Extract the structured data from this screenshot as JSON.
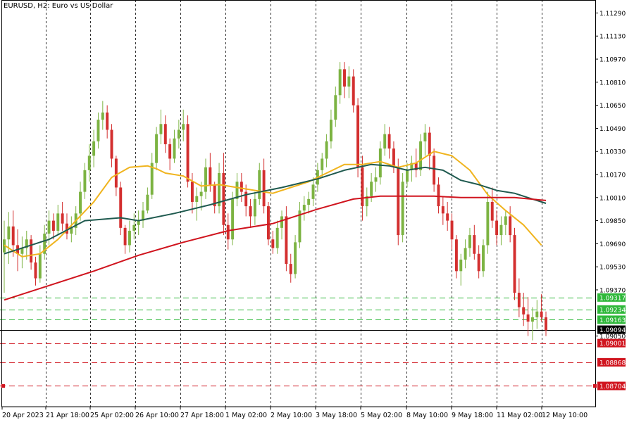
{
  "chart_data": {
    "type": "candlestick",
    "title": "EURUSD, H2:  Euro vs US Dollar",
    "symbol": "EURUSD",
    "timeframe": "H2",
    "description": "Euro vs US Dollar",
    "ylim": [
      1.0856,
      1.1138
    ],
    "y_ticks": [
      "1.11290",
      "1.11130",
      "1.10970",
      "1.10810",
      "1.10650",
      "1.10490",
      "1.10330",
      "1.10170",
      "1.10010",
      "1.09850",
      "1.09690",
      "1.09530",
      "1.09370",
      "1.09050"
    ],
    "x_labels": [
      "20 Apr 2023",
      "21 Apr 18:00",
      "25 Apr 02:00",
      "26 Apr 10:00",
      "27 Apr 18:00",
      "1 May 02:00",
      "2 May 10:00",
      "3 May 18:00",
      "5 May 02:00",
      "8 May 10:00",
      "9 May 18:00",
      "11 May 02:00",
      "12 May 10:00"
    ],
    "grid": "vertical-dashed",
    "colors": {
      "bull": "#7cb342",
      "bear": "#d32f2f",
      "ma_fast": "#f0b41e",
      "ma_mid": "#1f5a4f",
      "ma_slow": "#d0141e",
      "support": "#2fb83a",
      "resistance": "#d0141e",
      "current": "#000000"
    },
    "current_price": "1.09094",
    "levels": [
      {
        "price": 1.09317,
        "label": "1.09317",
        "kind": "support"
      },
      {
        "price": 1.09234,
        "label": "1.09234",
        "kind": "support"
      },
      {
        "price": 1.09163,
        "label": "1.09163",
        "kind": "support"
      },
      {
        "price": 1.09001,
        "label": "1.09001",
        "kind": "resistance"
      },
      {
        "price": 1.08868,
        "label": "1.08868",
        "kind": "resistance"
      },
      {
        "price": 1.08704,
        "label": "1.08704",
        "kind": "resistance"
      }
    ],
    "candles": [
      [
        1.0963,
        1.0985,
        1.0935,
        1.0972
      ],
      [
        1.0972,
        1.0991,
        1.0955,
        1.0981
      ],
      [
        1.0981,
        1.0992,
        1.096,
        1.0968
      ],
      [
        1.0968,
        1.0979,
        1.095,
        1.0962
      ],
      [
        1.0962,
        1.0974,
        1.0952,
        1.0966
      ],
      [
        1.0966,
        1.0978,
        1.0958,
        1.0972
      ],
      [
        1.0972,
        1.0975,
        1.0951,
        1.0956
      ],
      [
        1.0956,
        1.096,
        1.094,
        1.0945
      ],
      [
        1.0945,
        1.0968,
        1.0942,
        1.0962
      ],
      [
        1.0962,
        1.0982,
        1.0958,
        1.0976
      ],
      [
        1.0976,
        1.0992,
        1.0968,
        1.0985
      ],
      [
        1.0985,
        1.099,
        1.0972,
        1.0978
      ],
      [
        1.0978,
        1.0996,
        1.0975,
        1.099
      ],
      [
        1.099,
        1.0998,
        1.0978,
        1.0983
      ],
      [
        1.0983,
        1.099,
        1.0972,
        1.0976
      ],
      [
        1.0976,
        1.0988,
        1.097,
        1.098
      ],
      [
        1.098,
        1.0995,
        1.0975,
        1.099
      ],
      [
        1.099,
        1.1012,
        1.0985,
        1.1005
      ],
      [
        1.1005,
        1.1025,
        1.1,
        1.102
      ],
      [
        1.102,
        1.1038,
        1.1012,
        1.103
      ],
      [
        1.103,
        1.1048,
        1.1022,
        1.104
      ],
      [
        1.104,
        1.106,
        1.1035,
        1.1055
      ],
      [
        1.1055,
        1.1068,
        1.1048,
        1.106
      ],
      [
        1.106,
        1.1065,
        1.1042,
        1.1048
      ],
      [
        1.1048,
        1.1052,
        1.1022,
        1.1028
      ],
      [
        1.1028,
        1.103,
        1.1002,
        1.1008
      ],
      [
        1.1008,
        1.1012,
        1.0975,
        1.098
      ],
      [
        1.098,
        1.0982,
        1.0962,
        1.0968
      ],
      [
        1.0968,
        1.0985,
        1.0963,
        1.0978
      ],
      [
        1.0978,
        1.099,
        1.0972,
        1.0982
      ],
      [
        1.0982,
        1.0992,
        1.0975,
        1.0985
      ],
      [
        1.0985,
        1.0998,
        1.098,
        1.0992
      ],
      [
        1.0992,
        1.1008,
        1.099,
        1.1003
      ],
      [
        1.1003,
        1.1032,
        1.1,
        1.1025
      ],
      [
        1.1025,
        1.105,
        1.102,
        1.1045
      ],
      [
        1.1045,
        1.1062,
        1.1038,
        1.1052
      ],
      [
        1.1052,
        1.1058,
        1.1032,
        1.1038
      ],
      [
        1.1038,
        1.1042,
        1.102,
        1.1028
      ],
      [
        1.1028,
        1.1048,
        1.1025,
        1.1042
      ],
      [
        1.1042,
        1.1055,
        1.1035,
        1.1048
      ],
      [
        1.1048,
        1.1062,
        1.104,
        1.1052
      ],
      [
        1.1052,
        1.1058,
        1.1008,
        1.1012
      ],
      [
        1.1012,
        1.1018,
        1.099,
        1.0998
      ],
      [
        1.0998,
        1.1008,
        1.0985,
        1.1002
      ],
      [
        1.1002,
        1.1012,
        1.0992,
        1.1005
      ],
      [
        1.1005,
        1.1028,
        1.1,
        1.1022
      ],
      [
        1.1022,
        1.1032,
        1.1005,
        1.101
      ],
      [
        1.101,
        1.1012,
        1.099,
        1.0995
      ],
      [
        1.0995,
        1.1025,
        1.099,
        1.1018
      ],
      [
        1.1018,
        1.1032,
        1.0975,
        1.0982
      ],
      [
        1.0982,
        1.099,
        1.0965,
        1.0972
      ],
      [
        1.0972,
        1.1005,
        1.0968,
        1.1
      ],
      [
        1.1,
        1.1018,
        1.0995,
        1.1012
      ],
      [
        1.1012,
        1.1018,
        1.0998,
        1.1005
      ],
      [
        1.1005,
        1.101,
        1.0988,
        1.0995
      ],
      [
        1.0995,
        1.1,
        1.098,
        1.0988
      ],
      [
        1.0988,
        1.1005,
        1.0982,
        1.1
      ],
      [
        1.1,
        1.1025,
        1.0996,
        1.102
      ],
      [
        1.102,
        1.1028,
        1.099,
        1.0995
      ],
      [
        1.0995,
        1.0998,
        1.0968,
        1.0972
      ],
      [
        1.0972,
        1.0978,
        1.0962,
        1.0966
      ],
      [
        1.0966,
        1.0985,
        1.0962,
        1.098
      ],
      [
        1.098,
        1.0992,
        1.0972,
        1.0988
      ],
      [
        1.0988,
        1.0995,
        1.095,
        1.0955
      ],
      [
        1.0955,
        1.0962,
        1.0942,
        1.0948
      ],
      [
        1.0948,
        1.0975,
        1.0945,
        1.097
      ],
      [
        1.097,
        1.0998,
        1.0966,
        1.0992
      ],
      [
        1.0992,
        1.1002,
        1.0985,
        1.0996
      ],
      [
        1.0996,
        1.1005,
        1.099,
        1.1
      ],
      [
        1.1,
        1.1015,
        1.0995,
        1.101
      ],
      [
        1.101,
        1.1025,
        1.1005,
        1.102
      ],
      [
        1.102,
        1.1032,
        1.1015,
        1.1028
      ],
      [
        1.1028,
        1.1045,
        1.1022,
        1.104
      ],
      [
        1.104,
        1.1062,
        1.1035,
        1.1055
      ],
      [
        1.1055,
        1.1078,
        1.105,
        1.1072
      ],
      [
        1.1072,
        1.1095,
        1.1066,
        1.109
      ],
      [
        1.109,
        1.1095,
        1.107,
        1.1078
      ],
      [
        1.1078,
        1.1092,
        1.107,
        1.1085
      ],
      [
        1.1085,
        1.109,
        1.106,
        1.1065
      ],
      [
        1.1065,
        1.107,
        1.1015,
        1.1022
      ],
      [
        1.1022,
        1.103,
        1.0985,
        1.0995
      ],
      [
        1.0995,
        1.1008,
        1.0988,
        1.1002
      ],
      [
        1.1002,
        1.1018,
        1.0998,
        1.1012
      ],
      [
        1.1012,
        1.1022,
        1.1005,
        1.1015
      ],
      [
        1.1015,
        1.104,
        1.101,
        1.1035
      ],
      [
        1.1035,
        1.1052,
        1.103,
        1.1045
      ],
      [
        1.1045,
        1.105,
        1.1028,
        1.1035
      ],
      [
        1.1035,
        1.104,
        1.1018,
        1.1022
      ],
      [
        1.1022,
        1.1028,
        1.0968,
        1.0975
      ],
      [
        1.0975,
        1.1018,
        1.097,
        1.1012
      ],
      [
        1.1012,
        1.1025,
        1.1008,
        1.102
      ],
      [
        1.102,
        1.103,
        1.1012,
        1.1025
      ],
      [
        1.1025,
        1.1035,
        1.1015,
        1.102
      ],
      [
        1.102,
        1.1045,
        1.1016,
        1.104
      ],
      [
        1.104,
        1.1052,
        1.103,
        1.1046
      ],
      [
        1.1046,
        1.105,
        1.102,
        1.103
      ],
      [
        1.103,
        1.1035,
        1.1005,
        1.101
      ],
      [
        1.101,
        1.1015,
        1.099,
        1.0995
      ],
      [
        1.0995,
        1.1002,
        1.0982,
        1.099
      ],
      [
        1.099,
        1.0998,
        1.0978,
        1.0985
      ],
      [
        1.0985,
        1.099,
        1.0965,
        1.0972
      ],
      [
        1.0972,
        1.0975,
        1.0945,
        1.095
      ],
      [
        1.095,
        1.0962,
        1.094,
        1.0958
      ],
      [
        1.0958,
        1.0972,
        1.0952,
        1.0966
      ],
      [
        1.0966,
        1.098,
        1.096,
        1.0975
      ],
      [
        1.0975,
        1.0982,
        1.0958,
        1.0962
      ],
      [
        1.0962,
        1.0968,
        1.0945,
        1.095
      ],
      [
        1.095,
        1.0972,
        1.0946,
        1.0968
      ],
      [
        1.0968,
        1.1005,
        1.0962,
        1.0998
      ],
      [
        1.0998,
        1.1008,
        1.098,
        1.0985
      ],
      [
        1.0985,
        1.0992,
        1.0968,
        1.0975
      ],
      [
        1.0975,
        1.0988,
        1.0968,
        1.0982
      ],
      [
        1.0982,
        1.0992,
        1.0975,
        1.0988
      ],
      [
        1.0988,
        1.0995,
        1.097,
        1.0975
      ],
      [
        1.0975,
        1.098,
        1.093,
        1.0935
      ],
      [
        1.0935,
        1.0945,
        1.0918,
        1.0925
      ],
      [
        1.0925,
        1.0935,
        1.0912,
        1.092
      ],
      [
        1.092,
        1.0932,
        1.0905,
        1.0915
      ],
      [
        1.0915,
        1.0925,
        1.0902,
        1.0918
      ],
      [
        1.0918,
        1.093,
        1.091,
        1.0922
      ],
      [
        1.0922,
        1.0934,
        1.0915,
        1.0918
      ],
      [
        1.0918,
        1.0922,
        1.0905,
        1.0909
      ]
    ],
    "moving_averages": [
      {
        "key": "ma_fast",
        "values": [
          [
            0,
            1.0968
          ],
          [
            4,
            1.096
          ],
          [
            8,
            1.0962
          ],
          [
            12,
            1.0972
          ],
          [
            16,
            1.0985
          ],
          [
            20,
            1.0998
          ],
          [
            24,
            1.1015
          ],
          [
            28,
            1.1022
          ],
          [
            32,
            1.1023
          ],
          [
            34,
            1.1021
          ],
          [
            36,
            1.1018
          ],
          [
            40,
            1.1016
          ],
          [
            44,
            1.1009
          ],
          [
            48,
            1.101
          ],
          [
            52,
            1.1008
          ],
          [
            56,
            1.1006
          ],
          [
            60,
            1.1004
          ],
          [
            64,
            1.1008
          ],
          [
            68,
            1.1012
          ],
          [
            72,
            1.1018
          ],
          [
            76,
            1.1024
          ],
          [
            80,
            1.1024
          ],
          [
            84,
            1.1026
          ],
          [
            88,
            1.1022
          ],
          [
            92,
            1.1025
          ],
          [
            96,
            1.1033
          ],
          [
            100,
            1.103
          ],
          [
            104,
            1.102
          ],
          [
            108,
            1.1003
          ],
          [
            112,
            1.0992
          ],
          [
            116,
            1.0982
          ],
          [
            120,
            1.0968
          ]
        ]
      },
      {
        "key": "ma_mid",
        "values": [
          [
            0,
            1.0962
          ],
          [
            10,
            1.0972
          ],
          [
            18,
            1.0985
          ],
          [
            26,
            1.0987
          ],
          [
            30,
            1.0985
          ],
          [
            38,
            1.099
          ],
          [
            46,
            1.0996
          ],
          [
            54,
            1.1003
          ],
          [
            62,
            1.1008
          ],
          [
            70,
            1.1014
          ],
          [
            76,
            1.102
          ],
          [
            82,
            1.1024
          ],
          [
            86,
            1.1023
          ],
          [
            90,
            1.102
          ],
          [
            94,
            1.1022
          ],
          [
            98,
            1.102
          ],
          [
            102,
            1.1013
          ],
          [
            106,
            1.101
          ],
          [
            110,
            1.1006
          ],
          [
            114,
            1.1004
          ],
          [
            118,
            1.1
          ],
          [
            121,
            1.0997
          ]
        ]
      },
      {
        "key": "ma_slow",
        "values": [
          [
            0,
            1.093
          ],
          [
            10,
            1.094
          ],
          [
            20,
            1.095
          ],
          [
            30,
            1.0961
          ],
          [
            40,
            1.097
          ],
          [
            50,
            1.0978
          ],
          [
            60,
            1.0983
          ],
          [
            70,
            1.0993
          ],
          [
            78,
            1.1
          ],
          [
            84,
            1.1002
          ],
          [
            90,
            1.1002
          ],
          [
            96,
            1.1002
          ],
          [
            102,
            1.1001
          ],
          [
            108,
            1.1001
          ],
          [
            114,
            1.1001
          ],
          [
            121,
            1.0999
          ]
        ]
      }
    ]
  }
}
